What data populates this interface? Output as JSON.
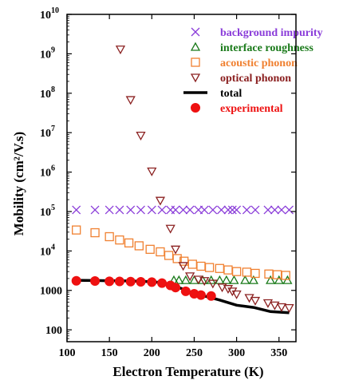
{
  "chart_data": {
    "type": "scatter",
    "xlabel": "Electron Temperature (K)",
    "ylabel": "Mobility (cm²/V.s)",
    "xlim": [
      100,
      370
    ],
    "ylim": [
      50,
      10000000000
    ],
    "y_scale": "log",
    "x_ticks": [
      100,
      150,
      200,
      250,
      300,
      350
    ],
    "y_ticks": [
      {
        "value": 100,
        "label": "100"
      },
      {
        "value": 1000,
        "label": "1000"
      },
      {
        "value": 10000,
        "label": "10",
        "exp": "4"
      },
      {
        "value": 100000,
        "label": "10",
        "exp": "5"
      },
      {
        "value": 1000000,
        "label": "10",
        "exp": "6"
      },
      {
        "value": 10000000,
        "label": "10",
        "exp": "7"
      },
      {
        "value": 100000000,
        "label": "10",
        "exp": "8"
      },
      {
        "value": 1000000000,
        "label": "10",
        "exp": "9"
      },
      {
        "value": 10000000000,
        "label": "10",
        "exp": "10"
      }
    ],
    "grid": false,
    "legend_position": "top-right",
    "series": [
      {
        "name": "background impurity",
        "marker": "x",
        "color": "#8a3cd9",
        "x": [
          111,
          133,
          150,
          162,
          175,
          187,
          200,
          212,
          222,
          228,
          237,
          245,
          255,
          262,
          272,
          282,
          290,
          295,
          300,
          312,
          322,
          337,
          345,
          353,
          362
        ],
        "y": [
          110000,
          110000,
          110000,
          110000,
          110000,
          110000,
          110000,
          110000,
          110000,
          110000,
          110000,
          110000,
          110000,
          110000,
          110000,
          110000,
          110000,
          110000,
          110000,
          110000,
          110000,
          110000,
          110000,
          110000,
          110000
        ]
      },
      {
        "name": "interface roughness",
        "marker": "triangle",
        "color": "#1a7a1a",
        "x": [
          226,
          232,
          240,
          250,
          260,
          270,
          280,
          288,
          297,
          310,
          320,
          340,
          350,
          360
        ],
        "y": [
          1800,
          1800,
          1800,
          1800,
          1800,
          1800,
          1800,
          1800,
          1800,
          1800,
          1800,
          1800,
          1800,
          1800
        ]
      },
      {
        "name": "acoustic phonon",
        "marker": "square",
        "color": "#f08030",
        "x": [
          111,
          133,
          150,
          162,
          173,
          185,
          198,
          210,
          220,
          230,
          238,
          248,
          258,
          268,
          280,
          290,
          300,
          312,
          322,
          338,
          348,
          358
        ],
        "y": [
          34000,
          29000,
          23000,
          19000,
          16000,
          13500,
          11000,
          9500,
          7700,
          6400,
          5500,
          4600,
          4100,
          3800,
          3600,
          3300,
          3000,
          2900,
          2700,
          2600,
          2500,
          2400
        ]
      },
      {
        "name": "optical phonon",
        "marker": "triangle-down",
        "color": "#8b2020",
        "x": [
          163,
          175,
          187,
          200,
          210,
          222,
          228,
          237,
          245,
          255,
          262,
          272,
          283,
          290,
          295,
          300,
          315,
          322,
          337,
          345,
          353,
          362
        ],
        "y": [
          1300000000,
          68000000,
          8500000,
          1050000,
          190000,
          37000,
          11000,
          4200,
          2300,
          1900,
          1750,
          1500,
          1200,
          1100,
          950,
          800,
          650,
          550,
          480,
          420,
          380,
          360
        ]
      },
      {
        "name": "total",
        "marker": "line",
        "color": "#000000",
        "x": [
          111,
          133,
          150,
          170,
          190,
          210,
          222,
          232,
          245,
          260,
          280,
          300,
          320,
          340,
          362
        ],
        "y": [
          1800,
          1780,
          1760,
          1740,
          1700,
          1600,
          1420,
          1180,
          920,
          740,
          570,
          420,
          370,
          290,
          270
        ]
      },
      {
        "name": "experimental",
        "marker": "circle",
        "color": "#ee1111",
        "x": [
          111,
          133,
          150,
          162,
          175,
          187,
          200,
          212,
          222,
          228,
          240,
          250,
          258,
          270
        ],
        "y": [
          1750,
          1730,
          1700,
          1690,
          1670,
          1650,
          1620,
          1530,
          1340,
          1180,
          950,
          820,
          760,
          720
        ]
      }
    ]
  }
}
